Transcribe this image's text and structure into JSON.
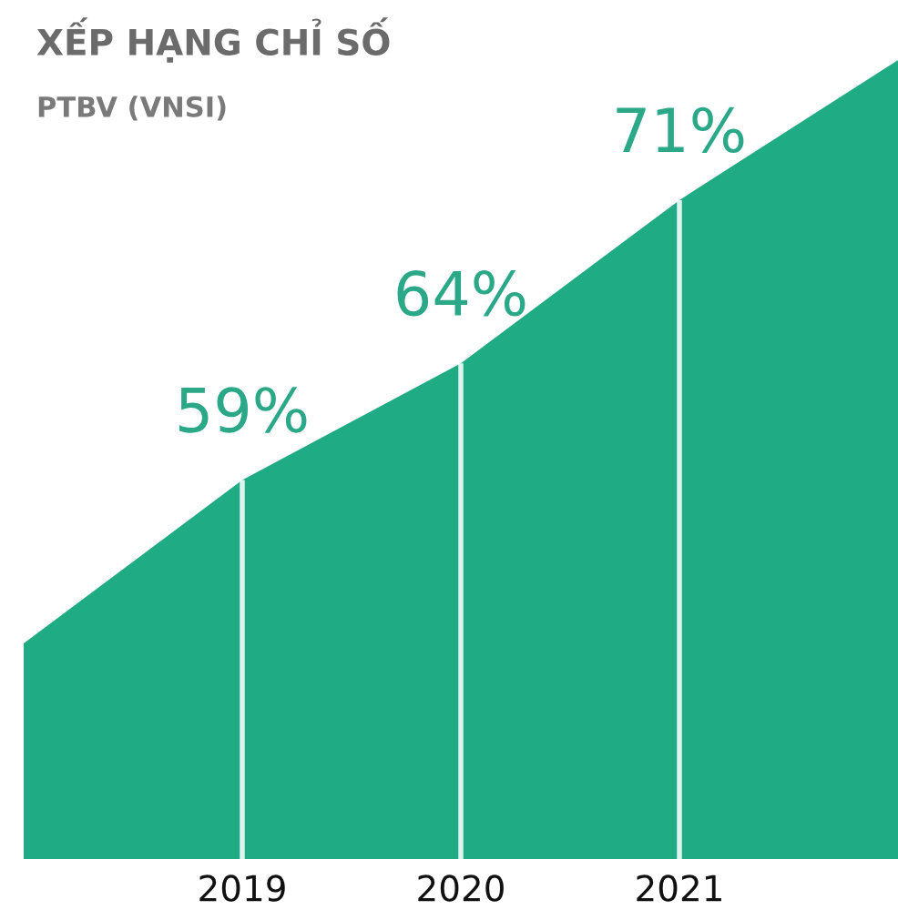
{
  "chart_data": {
    "type": "area",
    "title": "XẾP HẠNG CHỈ SỐ",
    "subtitle": "PTBV (VNSI)",
    "categories": [
      null,
      "2019",
      "2020",
      "2021",
      null
    ],
    "values": [
      52,
      59,
      64,
      71,
      77
    ],
    "value_labels": [
      null,
      "59%",
      "64%",
      "71%",
      null
    ],
    "color": "#1fac84",
    "tick_labels": "x",
    "grid": false,
    "legend": false
  }
}
